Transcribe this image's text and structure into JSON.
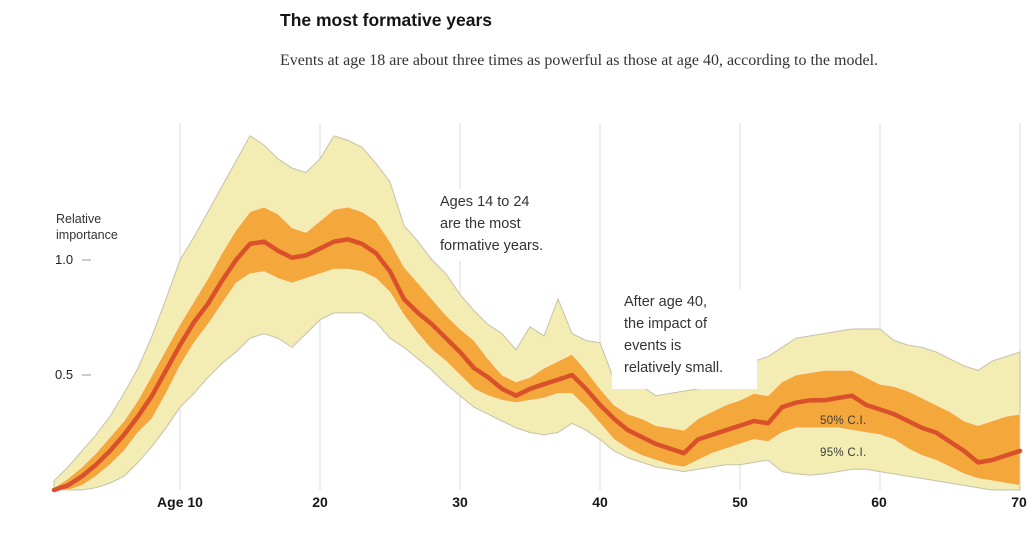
{
  "header": {
    "title": "The most formative years",
    "subtitle": "Events at age 18 are about three times as powerful as those at age 40, according to the model."
  },
  "annotations": [
    {
      "lines": [
        "Ages 14 to 24",
        "are the most",
        "formative years."
      ]
    },
    {
      "lines": [
        "After age 40,",
        "the impact of",
        "events is",
        "relatively small."
      ]
    }
  ],
  "y_axis": {
    "label_line1": "Relative",
    "label_line2": "importance",
    "ticks": [
      "1.0",
      "0.5"
    ]
  },
  "x_axis": {
    "ticks": [
      "Age 10",
      "20",
      "30",
      "40",
      "50",
      "60",
      "70"
    ]
  },
  "band_labels": {
    "ci50": "50% C.I.",
    "ci95": "95% C.I."
  },
  "colors": {
    "line": "#d9512b",
    "ci50_band": "#f4a83c",
    "ci95_band": "#f3ecb3",
    "band_edge": "#c6c1ab",
    "gridline": "#dbdbdb",
    "tick_dash": "#bbbbbb"
  },
  "chart_data": {
    "type": "area",
    "title": "The most formative years",
    "ylabel": "Relative importance",
    "yticks": [
      0.5,
      1.0
    ],
    "xlim": [
      1,
      70
    ],
    "ylim": [
      0,
      1.6
    ],
    "grid": "vertical-only",
    "tick_ages": [
      10,
      20,
      30,
      40,
      50,
      60,
      70
    ],
    "ages": [
      1,
      2,
      3,
      4,
      5,
      6,
      7,
      8,
      9,
      10,
      11,
      12,
      13,
      14,
      15,
      16,
      17,
      18,
      19,
      20,
      21,
      22,
      23,
      24,
      25,
      26,
      27,
      28,
      29,
      30,
      31,
      32,
      33,
      34,
      35,
      36,
      37,
      38,
      39,
      40,
      41,
      42,
      43,
      44,
      45,
      46,
      47,
      48,
      49,
      50,
      51,
      52,
      53,
      54,
      55,
      56,
      57,
      58,
      59,
      60,
      61,
      62,
      63,
      64,
      65,
      66,
      67,
      68,
      69,
      70
    ],
    "series": [
      {
        "name": "mean",
        "values": [
          0,
          0.02,
          0.06,
          0.11,
          0.17,
          0.24,
          0.32,
          0.41,
          0.52,
          0.63,
          0.73,
          0.81,
          0.91,
          1.0,
          1.07,
          1.08,
          1.04,
          1.01,
          1.02,
          1.05,
          1.08,
          1.09,
          1.07,
          1.03,
          0.95,
          0.83,
          0.77,
          0.72,
          0.66,
          0.6,
          0.53,
          0.49,
          0.44,
          0.41,
          0.44,
          0.46,
          0.48,
          0.5,
          0.44,
          0.37,
          0.31,
          0.26,
          0.23,
          0.2,
          0.18,
          0.16,
          0.22,
          0.24,
          0.26,
          0.28,
          0.3,
          0.29,
          0.36,
          0.38,
          0.39,
          0.39,
          0.4,
          0.41,
          0.37,
          0.35,
          0.33,
          0.3,
          0.27,
          0.25,
          0.21,
          0.17,
          0.12,
          0.13,
          0.15,
          0.17
        ]
      },
      {
        "name": "ci50_upper",
        "values": [
          0.01,
          0.05,
          0.1,
          0.16,
          0.23,
          0.3,
          0.39,
          0.5,
          0.61,
          0.72,
          0.82,
          0.92,
          1.03,
          1.13,
          1.21,
          1.23,
          1.2,
          1.14,
          1.12,
          1.17,
          1.22,
          1.23,
          1.21,
          1.17,
          1.08,
          0.97,
          0.9,
          0.83,
          0.76,
          0.7,
          0.65,
          0.57,
          0.5,
          0.47,
          0.49,
          0.53,
          0.56,
          0.59,
          0.52,
          0.44,
          0.37,
          0.33,
          0.31,
          0.28,
          0.27,
          0.26,
          0.31,
          0.34,
          0.37,
          0.39,
          0.42,
          0.41,
          0.47,
          0.5,
          0.51,
          0.52,
          0.52,
          0.52,
          0.49,
          0.46,
          0.45,
          0.43,
          0.4,
          0.37,
          0.34,
          0.3,
          0.28,
          0.3,
          0.32,
          0.33
        ]
      },
      {
        "name": "ci50_lower",
        "values": [
          0,
          0,
          0.02,
          0.06,
          0.11,
          0.17,
          0.25,
          0.31,
          0.42,
          0.54,
          0.64,
          0.72,
          0.81,
          0.9,
          0.94,
          0.95,
          0.92,
          0.9,
          0.92,
          0.94,
          0.96,
          0.96,
          0.95,
          0.92,
          0.86,
          0.76,
          0.68,
          0.61,
          0.56,
          0.5,
          0.44,
          0.41,
          0.39,
          0.38,
          0.39,
          0.4,
          0.42,
          0.42,
          0.36,
          0.29,
          0.22,
          0.18,
          0.15,
          0.13,
          0.11,
          0.1,
          0.13,
          0.16,
          0.18,
          0.2,
          0.22,
          0.21,
          0.25,
          0.27,
          0.27,
          0.27,
          0.27,
          0.26,
          0.25,
          0.24,
          0.22,
          0.18,
          0.15,
          0.13,
          0.1,
          0.07,
          0.05,
          0.04,
          0.03,
          0.02
        ]
      },
      {
        "name": "ci95_upper",
        "values": [
          0.04,
          0.1,
          0.17,
          0.24,
          0.32,
          0.42,
          0.53,
          0.67,
          0.83,
          1.0,
          1.1,
          1.21,
          1.32,
          1.43,
          1.54,
          1.5,
          1.44,
          1.4,
          1.38,
          1.44,
          1.54,
          1.52,
          1.49,
          1.42,
          1.34,
          1.15,
          1.08,
          1.0,
          0.94,
          0.85,
          0.78,
          0.72,
          0.68,
          0.61,
          0.71,
          0.67,
          0.83,
          0.68,
          0.65,
          0.64,
          0.48,
          0.48,
          0.45,
          0.41,
          0.42,
          0.43,
          0.44,
          0.48,
          0.54,
          0.53,
          0.56,
          0.58,
          0.62,
          0.66,
          0.67,
          0.68,
          0.69,
          0.7,
          0.7,
          0.7,
          0.65,
          0.63,
          0.62,
          0.6,
          0.57,
          0.54,
          0.52,
          0.56,
          0.58,
          0.6
        ]
      },
      {
        "name": "ci95_lower",
        "values": [
          0,
          0,
          0,
          0.01,
          0.03,
          0.06,
          0.12,
          0.19,
          0.27,
          0.36,
          0.42,
          0.49,
          0.55,
          0.6,
          0.66,
          0.68,
          0.66,
          0.62,
          0.68,
          0.74,
          0.77,
          0.77,
          0.77,
          0.73,
          0.66,
          0.62,
          0.57,
          0.52,
          0.46,
          0.41,
          0.36,
          0.33,
          0.3,
          0.27,
          0.25,
          0.24,
          0.25,
          0.29,
          0.26,
          0.22,
          0.17,
          0.14,
          0.12,
          0.1,
          0.09,
          0.08,
          0.09,
          0.1,
          0.11,
          0.11,
          0.12,
          0.13,
          0.08,
          0.07,
          0.065,
          0.07,
          0.08,
          0.09,
          0.09,
          0.08,
          0.07,
          0.06,
          0.05,
          0.04,
          0.03,
          0.02,
          0.01,
          0,
          0,
          0
        ]
      }
    ]
  }
}
